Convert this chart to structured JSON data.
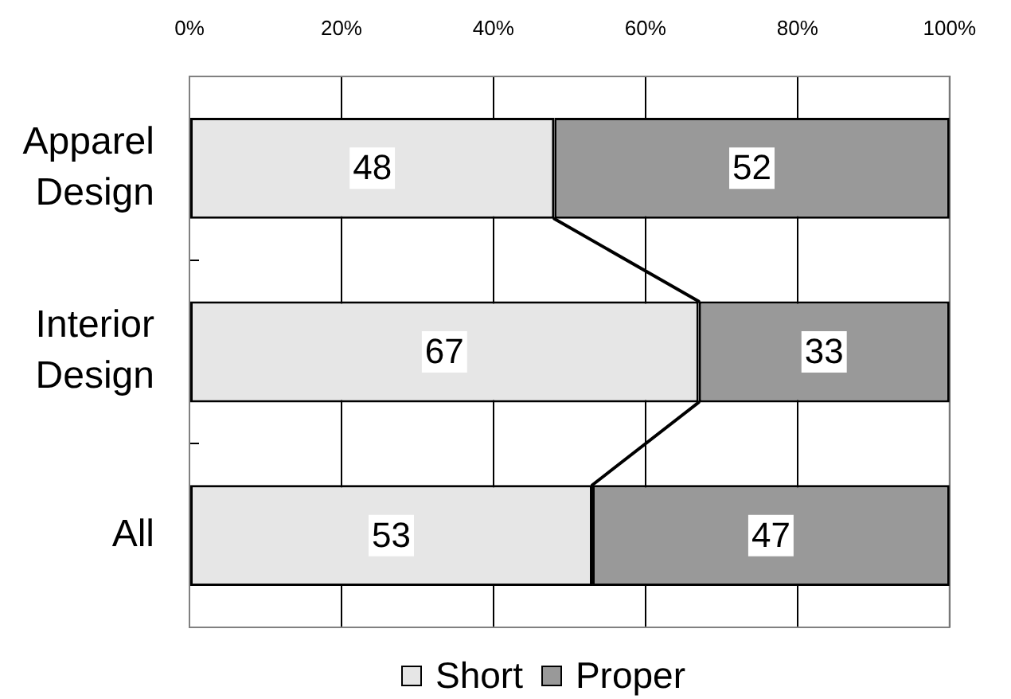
{
  "chart_data": {
    "type": "bar",
    "orientation": "horizontal",
    "stacked": true,
    "categories": [
      "Apparel Design",
      "Interior Design",
      "All"
    ],
    "series": [
      {
        "name": "Short",
        "color": "#e6e6e6",
        "values": [
          48,
          67,
          53
        ]
      },
      {
        "name": "Proper",
        "color": "#999999",
        "values": [
          52,
          33,
          47
        ]
      }
    ],
    "xlim": [
      0,
      100
    ],
    "xticks": [
      {
        "value": 0,
        "label": "0%"
      },
      {
        "value": 20,
        "label": "20%"
      },
      {
        "value": 40,
        "label": "40%"
      },
      {
        "value": 60,
        "label": "60%"
      },
      {
        "value": 80,
        "label": "80%"
      },
      {
        "value": 100,
        "label": "100%"
      }
    ],
    "grid": "x",
    "legend": "bottom",
    "data_labels": true
  }
}
